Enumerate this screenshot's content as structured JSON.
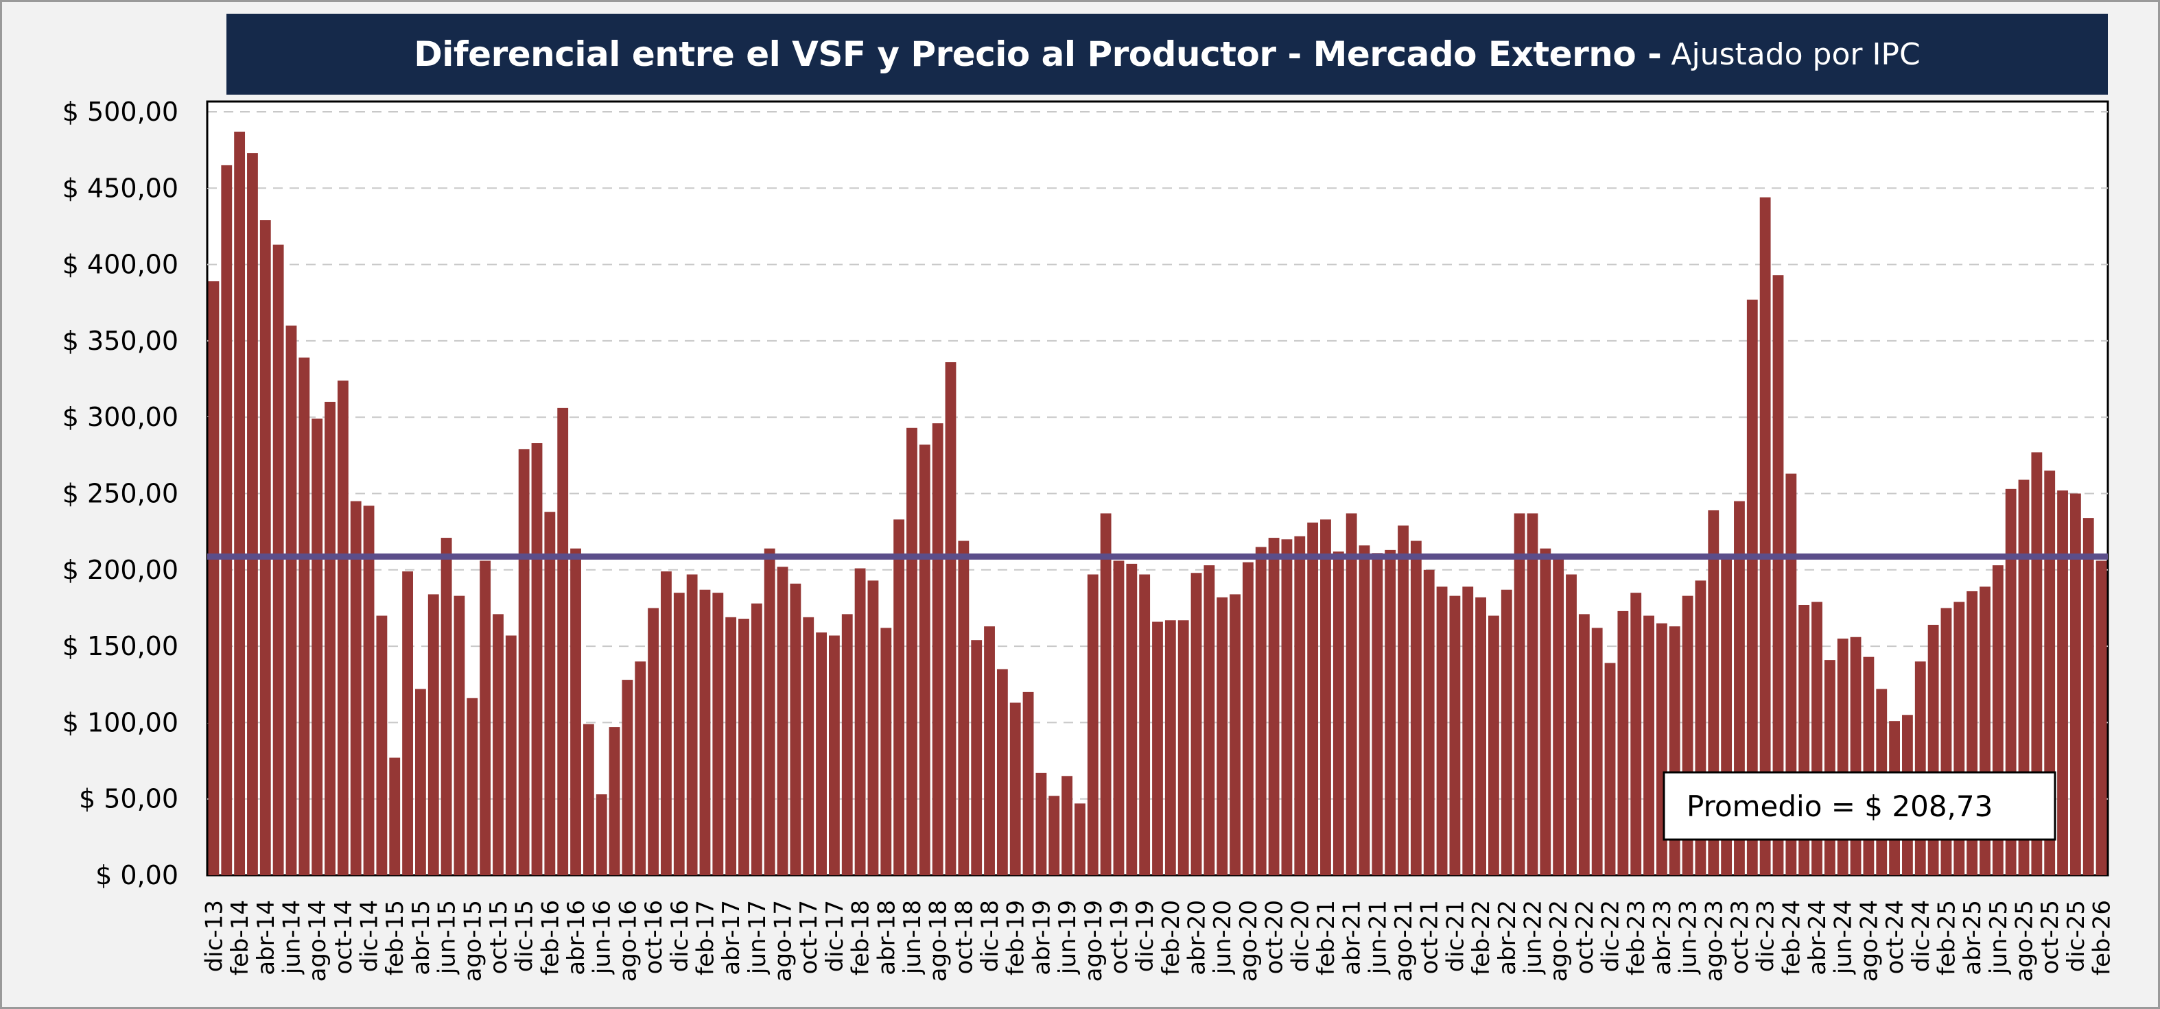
{
  "chart_data": {
    "type": "bar",
    "title": "Diferencial entre el VSF y Precio al Productor - Mercado Externo -",
    "subtitle": "Ajustado por IPC",
    "xlabel": "",
    "ylabel": "",
    "ylim": [
      0,
      500
    ],
    "y_ticks": [
      "$ 0,00",
      "$ 50,00",
      "$ 100,00",
      "$ 150,00",
      "$ 200,00",
      "$ 250,00",
      "$ 300,00",
      "$ 350,00",
      "$ 400,00",
      "$ 450,00",
      "$ 500,00"
    ],
    "grid": "horizontal dashed",
    "bar_color": "#953735",
    "average_line_color": "#5b4e8a",
    "average_value": 208.73,
    "average_label": "Promedio = $ 208,73",
    "x_tick_labels": [
      "dic-13",
      "feb-14",
      "abr-14",
      "jun-14",
      "ago-14",
      "oct-14",
      "dic-14",
      "feb-15",
      "abr-15",
      "jun-15",
      "ago-15",
      "oct-15",
      "dic-15",
      "feb-16",
      "abr-16",
      "jun-16",
      "ago-16",
      "oct-16",
      "dic-16",
      "feb-17",
      "abr-17",
      "jun-17",
      "ago-17",
      "oct-17",
      "dic-17",
      "feb-18",
      "abr-18",
      "jun-18",
      "ago-18",
      "oct-18",
      "dic-18",
      "feb-19",
      "abr-19",
      "jun-19",
      "ago-19",
      "oct-19",
      "dic-19",
      "feb-20",
      "abr-20",
      "jun-20",
      "ago-20",
      "oct-20",
      "dic-20",
      "feb-21",
      "abr-21",
      "jun-21",
      "ago-21",
      "oct-21",
      "dic-21",
      "feb-22",
      "abr-22",
      "jun-22",
      "ago-22",
      "oct-22",
      "dic-22",
      "feb-23",
      "abr-23",
      "jun-23",
      "ago-23",
      "oct-23",
      "dic-23",
      "feb-24",
      "abr-24",
      "jun-24",
      "ago-24",
      "oct-24",
      "dic-24",
      "feb-25",
      "abr-25",
      "jun-25",
      "ago-25",
      "oct-25",
      "dic-25",
      "feb-26"
    ],
    "values": [
      389,
      465,
      487,
      473,
      429,
      413,
      360,
      339,
      299,
      310,
      324,
      245,
      242,
      170,
      77,
      199,
      122,
      184,
      221,
      183,
      116,
      206,
      171,
      157,
      279,
      283,
      238,
      306,
      214,
      99,
      53,
      97,
      128,
      140,
      175,
      199,
      185,
      197,
      187,
      185,
      169,
      168,
      178,
      214,
      202,
      191,
      169,
      159,
      157,
      171,
      201,
      193,
      162,
      233,
      293,
      282,
      296,
      336,
      219,
      154,
      163,
      135,
      113,
      120,
      67,
      52,
      65,
      47,
      197,
      237,
      206,
      204,
      197,
      166,
      167,
      167,
      198,
      203,
      182,
      184,
      205,
      215,
      221,
      220,
      222,
      231,
      233,
      212,
      237,
      216,
      211,
      213,
      229,
      219,
      200,
      189,
      183,
      189,
      182,
      170,
      187,
      237,
      237,
      214,
      210,
      197,
      171,
      162,
      139,
      173,
      185,
      170,
      165,
      163,
      183,
      193,
      239,
      210,
      245,
      377,
      444,
      393,
      263,
      177,
      179,
      141,
      155,
      156,
      143,
      122,
      101,
      105,
      140,
      164,
      175,
      179,
      186,
      189,
      203,
      253,
      259,
      277,
      265,
      252,
      250,
      234,
      206
    ]
  }
}
